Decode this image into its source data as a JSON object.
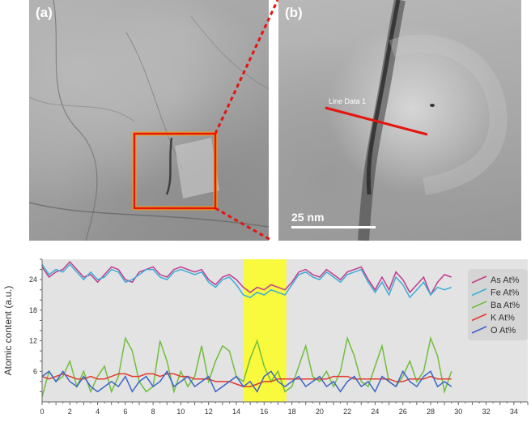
{
  "panels": {
    "a": {
      "label": "(a)"
    },
    "b": {
      "label": "(b)",
      "line_label": "Line Data 1",
      "scale_bar": "25 nm"
    }
  },
  "colors": {
    "roi": "#e4140f",
    "roi_glow": "#f6a20a",
    "highlight": "#f9f93e",
    "plot_bg": "#e3e3e3"
  },
  "chart_data": {
    "type": "line",
    "ylabel": "Atomic content (a.u.)",
    "xlabel": "",
    "xlim": [
      0,
      35
    ],
    "ylim": [
      0,
      28
    ],
    "x_ticks": [
      0,
      2,
      4,
      6,
      8,
      10,
      12,
      14,
      16,
      18,
      20,
      22,
      24,
      26,
      28,
      30,
      32,
      34
    ],
    "y_ticks": [
      6,
      12,
      18,
      24
    ],
    "highlight_band": [
      14.5,
      17.6
    ],
    "grid": false,
    "legend_position": "right",
    "x": [
      0,
      0.5,
      1,
      1.5,
      2,
      2.5,
      3,
      3.5,
      4,
      4.5,
      5,
      5.5,
      6,
      6.5,
      7,
      7.5,
      8,
      8.5,
      9,
      9.5,
      10,
      10.5,
      11,
      11.5,
      12,
      12.5,
      13,
      13.5,
      14,
      14.5,
      15,
      15.5,
      16,
      16.5,
      17,
      17.5,
      18,
      18.5,
      19,
      19.5,
      20,
      20.5,
      21,
      21.5,
      22,
      22.5,
      23,
      23.5,
      24,
      24.5,
      25,
      25.5,
      26,
      26.5,
      27,
      27.5,
      28,
      28.5,
      29,
      29.5
    ],
    "series": [
      {
        "name": "As At%",
        "color": "#c23b8e",
        "values": [
          26.5,
          24.5,
          25.5,
          26,
          27.5,
          26,
          24.5,
          25,
          23.5,
          25,
          26.5,
          26,
          24,
          23.5,
          25.5,
          26,
          26.5,
          25,
          24.5,
          26,
          26.5,
          26,
          25.5,
          26,
          24,
          23,
          24.5,
          25,
          24,
          22.5,
          21.5,
          22.5,
          22,
          23,
          22.5,
          22,
          23.5,
          25.5,
          26,
          25,
          24.5,
          26,
          25,
          24,
          25.5,
          26,
          26.5,
          24,
          22,
          24.5,
          22,
          25.5,
          24,
          21.5,
          23,
          24.5,
          21,
          23.5,
          25,
          24.5
        ]
      },
      {
        "name": "Fe At%",
        "color": "#3aaed8",
        "values": [
          27,
          25,
          26,
          25.5,
          27,
          25.5,
          24,
          25.5,
          24,
          24.5,
          26,
          25.5,
          23.5,
          24,
          25,
          26,
          26,
          24.5,
          24,
          25.5,
          26,
          25.5,
          25,
          25.5,
          23.5,
          22.5,
          24,
          24.5,
          23,
          21,
          20.5,
          21.5,
          21,
          22,
          21.5,
          21,
          23,
          25,
          25.5,
          24.5,
          24,
          25.5,
          24.5,
          23.5,
          25,
          25.5,
          26,
          23.5,
          21.5,
          23.5,
          21,
          24.5,
          23,
          20.5,
          22,
          23.5,
          21,
          22.5,
          22,
          22.5
        ]
      },
      {
        "name": "Ba At%",
        "color": "#6fbf3c",
        "values": [
          1,
          6,
          4,
          5,
          8,
          3,
          6,
          2,
          5,
          7,
          2,
          5,
          12.5,
          10,
          4,
          2,
          3,
          12,
          8,
          2,
          6,
          3,
          5,
          11,
          4,
          8,
          11,
          10,
          5,
          4,
          8.5,
          12,
          7,
          4,
          6,
          2,
          3,
          7,
          11,
          5,
          4,
          6,
          3,
          6,
          12.5,
          9,
          4,
          3,
          7,
          11,
          4,
          3,
          5,
          8,
          4,
          6,
          12.5,
          9,
          2,
          6
        ]
      },
      {
        "name": "K At%",
        "color": "#e33a2e",
        "values": [
          5,
          4.5,
          5,
          5.5,
          5,
          4.5,
          4.5,
          5,
          4.5,
          4.5,
          5,
          5.5,
          5.5,
          5,
          5,
          5.5,
          5.5,
          5,
          5.5,
          5.5,
          5,
          5,
          4.5,
          4.5,
          4.5,
          4,
          4,
          4,
          3.5,
          3,
          3,
          3.5,
          4,
          4,
          4.5,
          4.5,
          4.5,
          4.5,
          4.5,
          4.5,
          4.5,
          4.5,
          5,
          5,
          5,
          4.5,
          4.5,
          4.5,
          4.5,
          4.5,
          4.5,
          4,
          4,
          4.5,
          4.5,
          4.5,
          5,
          4.5,
          4.5,
          4.5
        ]
      },
      {
        "name": "O At%",
        "color": "#3c64c8",
        "values": [
          5,
          6,
          4,
          6,
          4,
          3,
          5,
          3,
          2,
          3,
          4,
          3,
          5,
          2,
          4,
          5,
          3,
          4,
          6,
          3,
          4,
          5,
          3,
          4,
          5,
          2,
          3,
          4,
          5,
          3,
          4,
          2,
          5,
          6,
          4,
          3,
          4,
          5,
          3,
          4,
          5,
          3,
          4,
          2,
          4,
          5,
          3,
          4,
          2,
          5,
          4,
          3,
          6,
          4,
          3,
          5,
          6,
          3,
          4,
          3
        ]
      }
    ]
  }
}
